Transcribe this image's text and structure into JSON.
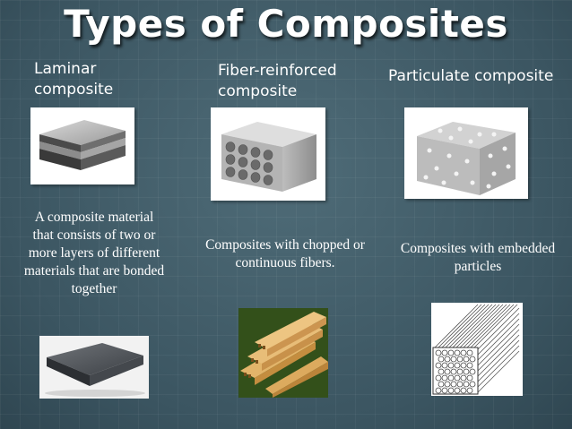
{
  "title": "Types of Composites",
  "columns": [
    {
      "heading_line1": "Laminar",
      "heading_line2": "composite",
      "description": "A composite material that consists of two or more layers of different materials that are bonded together"
    },
    {
      "heading_line1": "Fiber-reinforced",
      "heading_line2": "composite",
      "description": "Composites with chopped or continuous fibers."
    },
    {
      "heading_line1": "Particulate composite",
      "heading_line2": "",
      "description": "Composites with embedded particles"
    }
  ],
  "colors": {
    "background": "#3f5a66",
    "text": "#ffffff",
    "wood": "#d9a75a"
  }
}
